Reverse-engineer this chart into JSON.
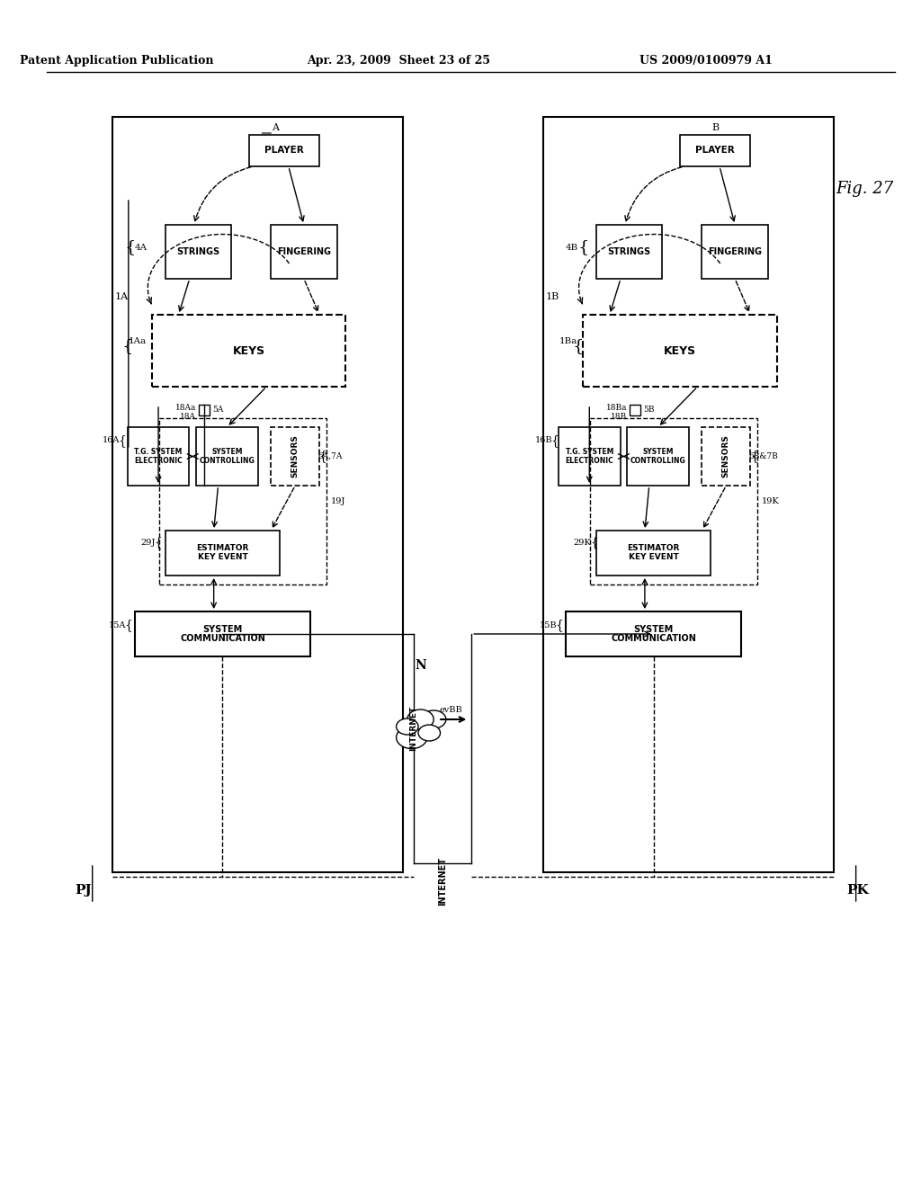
{
  "title_left": "Patent Application Publication",
  "title_center": "Apr. 23, 2009  Sheet 23 of 25",
  "title_right": "US 2009/0100979 A1",
  "fig_label": "Fig. 27",
  "bg_color": "#ffffff",
  "box_color": "#000000",
  "text_color": "#000000"
}
